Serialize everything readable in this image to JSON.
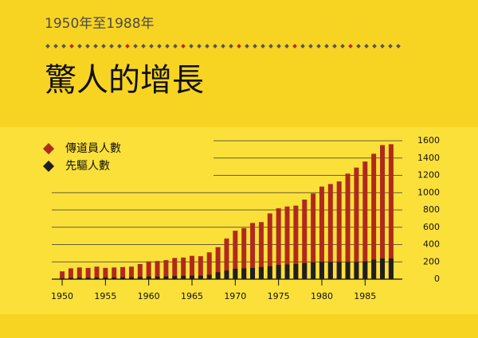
{
  "chart_data": {
    "type": "bar",
    "subtitle": "1950年至1988年",
    "title": "驚人的增長",
    "x": [
      1950,
      1951,
      1952,
      1953,
      1954,
      1955,
      1956,
      1957,
      1958,
      1959,
      1960,
      1961,
      1962,
      1963,
      1964,
      1965,
      1966,
      1967,
      1968,
      1969,
      1970,
      1971,
      1972,
      1973,
      1974,
      1975,
      1976,
      1977,
      1978,
      1979,
      1980,
      1981,
      1982,
      1983,
      1984,
      1985,
      1986,
      1987,
      1988
    ],
    "series": [
      {
        "name": "傳道員人數",
        "color": "#b02a1c",
        "values": [
          90,
          125,
          135,
          130,
          145,
          130,
          135,
          140,
          145,
          175,
          205,
          210,
          220,
          245,
          250,
          270,
          265,
          310,
          370,
          470,
          560,
          590,
          650,
          660,
          760,
          820,
          840,
          850,
          920,
          990,
          1070,
          1100,
          1130,
          1220,
          1290,
          1360,
          1450,
          1550,
          1560
        ]
      },
      {
        "name": "先驅人數",
        "color": "#1f1f1f",
        "values": [
          10,
          15,
          18,
          18,
          20,
          20,
          20,
          22,
          22,
          25,
          30,
          30,
          32,
          35,
          38,
          40,
          40,
          50,
          80,
          100,
          120,
          125,
          130,
          140,
          150,
          165,
          170,
          175,
          185,
          195,
          200,
          200,
          200,
          200,
          200,
          205,
          225,
          240,
          240
        ]
      }
    ],
    "xlim": [
      1948.8,
      1989.3
    ],
    "xticks": [
      1950,
      1955,
      1960,
      1965,
      1970,
      1975,
      1980,
      1985
    ],
    "ylim": [
      0,
      1600
    ],
    "yticks": [
      0,
      200,
      400,
      600,
      800,
      1000,
      1200,
      1400,
      1600
    ],
    "grid": true
  }
}
